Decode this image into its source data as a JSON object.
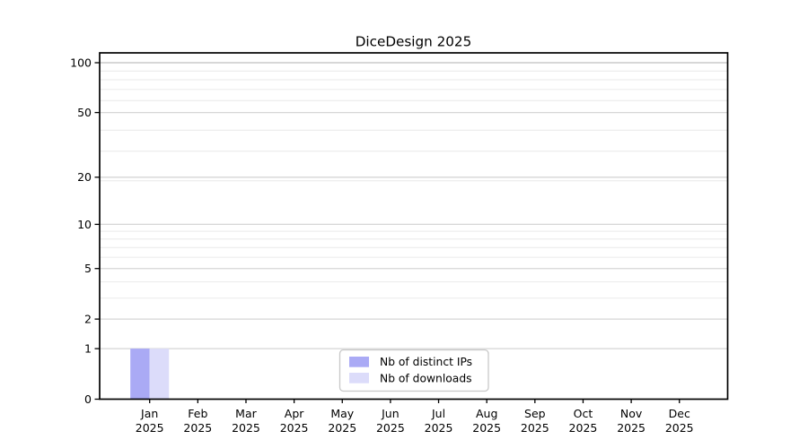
{
  "chart_data": {
    "type": "bar",
    "title": "DiceDesign 2025",
    "months": [
      "Jan",
      "Feb",
      "Mar",
      "Apr",
      "May",
      "Jun",
      "Jul",
      "Aug",
      "Sep",
      "Oct",
      "Nov",
      "Dec"
    ],
    "year": "2025",
    "x_tick_labels": [
      [
        "Jan",
        "2025"
      ],
      [
        "Feb",
        "2025"
      ],
      [
        "Mar",
        "2025"
      ],
      [
        "Apr",
        "2025"
      ],
      [
        "May",
        "2025"
      ],
      [
        "Jun",
        "2025"
      ],
      [
        "Jul",
        "2025"
      ],
      [
        "Aug",
        "2025"
      ],
      [
        "Sep",
        "2025"
      ],
      [
        "Oct",
        "2025"
      ],
      [
        "Nov",
        "2025"
      ],
      [
        "Dec",
        "2025"
      ]
    ],
    "series": [
      {
        "name": "Nb of distinct IPs",
        "color": "#aaaaf5",
        "values": [
          1,
          0,
          0,
          0,
          0,
          0,
          0,
          0,
          0,
          0,
          0,
          0
        ]
      },
      {
        "name": "Nb of downloads",
        "color": "#dcdcfa",
        "values": [
          1,
          0,
          0,
          0,
          0,
          0,
          0,
          0,
          0,
          0,
          0,
          0
        ]
      }
    ],
    "y_ticks": [
      0,
      1,
      2,
      5,
      10,
      20,
      50,
      100
    ],
    "y_tick_labels": [
      "0",
      "1",
      "2",
      "5",
      "10",
      "20",
      "50",
      "100"
    ],
    "y_scale": "log10(value+1)",
    "ylim": [
      0,
      100
    ],
    "grid": {
      "horizontal": true,
      "minor_log_gridlines": true
    },
    "legend": {
      "position": "bottom-center",
      "entries": [
        "Nb of distinct IPs",
        "Nb of downloads"
      ]
    },
    "colors": {
      "axis": "#000000",
      "major_grid": "#d6d6d6",
      "top_grid": "#bfbfbf",
      "minor_grid": "#ededed",
      "legend_border": "#c8c8c8",
      "background": "#ffffff"
    }
  }
}
